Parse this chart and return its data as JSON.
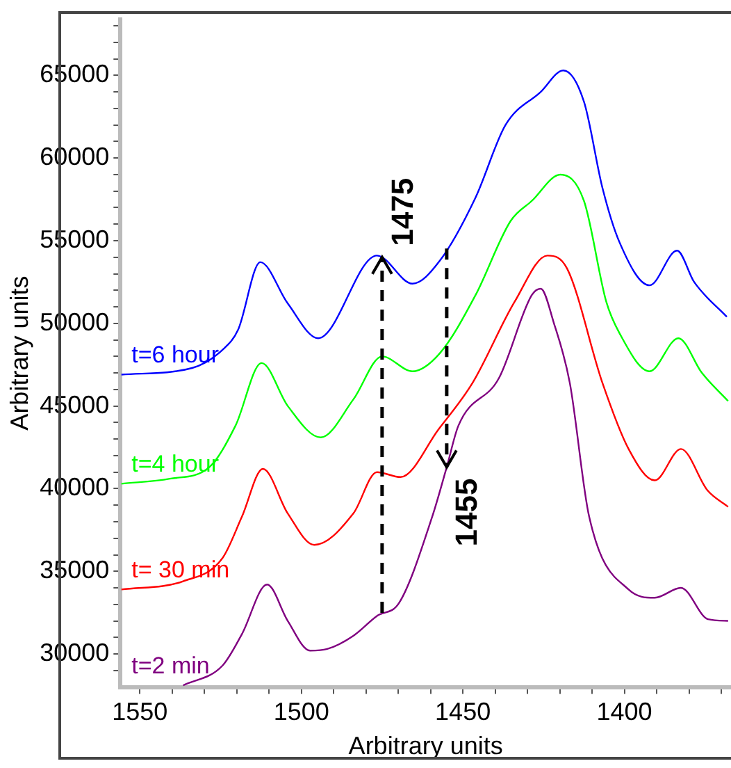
{
  "chart_data": {
    "type": "line",
    "xlabel": "Arbitrary units",
    "ylabel": "Arbitrary units",
    "xlim": [
      1556,
      1367
    ],
    "ylim": [
      28000,
      68400
    ],
    "xticks": [
      1550,
      {
        "value": 1540,
        "label": null
      },
      {
        "value": 1530,
        "label": null
      },
      {
        "value": 1520,
        "label": null
      },
      {
        "value": 1510,
        "label": null
      },
      1500,
      {
        "value": 1490,
        "label": null
      },
      {
        "value": 1480,
        "label": null
      },
      {
        "value": 1470,
        "label": null
      },
      {
        "value": 1460,
        "label": null
      },
      1450,
      {
        "value": 1440,
        "label": null
      },
      {
        "value": 1430,
        "label": null
      },
      {
        "value": 1420,
        "label": null
      },
      {
        "value": 1410,
        "label": null
      },
      1400,
      {
        "value": 1390,
        "label": null
      },
      {
        "value": 1380,
        "label": null
      },
      {
        "value": 1370,
        "label": null
      }
    ],
    "yticks": [
      {
        "value": 29000,
        "label": null
      },
      30000,
      {
        "value": 31000,
        "label": null
      },
      {
        "value": 32000,
        "label": null
      },
      {
        "value": 33000,
        "label": null
      },
      {
        "value": 34000,
        "label": null
      },
      35000,
      {
        "value": 36000,
        "label": null
      },
      {
        "value": 37000,
        "label": null
      },
      {
        "value": 38000,
        "label": null
      },
      {
        "value": 39000,
        "label": null
      },
      40000,
      {
        "value": 41000,
        "label": null
      },
      {
        "value": 42000,
        "label": null
      },
      {
        "value": 43000,
        "label": null
      },
      {
        "value": 44000,
        "label": null
      },
      45000,
      {
        "value": 46000,
        "label": null
      },
      {
        "value": 47000,
        "label": null
      },
      {
        "value": 48000,
        "label": null
      },
      {
        "value": 49000,
        "label": null
      },
      50000,
      {
        "value": 51000,
        "label": null
      },
      {
        "value": 52000,
        "label": null
      },
      {
        "value": 53000,
        "label": null
      },
      {
        "value": 54000,
        "label": null
      },
      55000,
      {
        "value": 56000,
        "label": null
      },
      {
        "value": 57000,
        "label": null
      },
      {
        "value": 58000,
        "label": null
      },
      {
        "value": 59000,
        "label": null
      },
      60000,
      {
        "value": 61000,
        "label": null
      },
      {
        "value": 62000,
        "label": null
      },
      {
        "value": 63000,
        "label": null
      },
      {
        "value": 64000,
        "label": null
      },
      65000,
      {
        "value": 66000,
        "label": null
      },
      {
        "value": 67000,
        "label": null
      },
      {
        "value": 68000,
        "label": null
      }
    ],
    "grid": false,
    "legend": false,
    "marker": "none",
    "line_style": "solid",
    "series": [
      {
        "name": "t=6 hour",
        "color": "#0000ff",
        "x": [
          1555.7,
          1533.8,
          1524.4,
          1519.6,
          1512.7,
          1504.2,
          1494.8,
          1476.6,
          1465.6,
          1457.1,
          1446.1,
          1436.8,
          1425.9,
          1418.9,
          1412.5,
          1406.8,
          1401.5,
          1392.2,
          1383.7,
          1378.4,
          1368.3
        ],
        "values": [
          46900,
          47300,
          48400,
          49600,
          53700,
          51200,
          49100,
          54100,
          52400,
          53800,
          57600,
          62000,
          64000,
          65300,
          63400,
          58200,
          54900,
          52300,
          54400,
          52500,
          50400
        ]
      },
      {
        "name": "t=4 hour",
        "color": "#00ff00",
        "x": [
          1555.7,
          1540.7,
          1528.5,
          1520.4,
          1512.3,
          1504.2,
          1494.0,
          1483.9,
          1475.0,
          1465.6,
          1457.1,
          1446.1,
          1435.2,
          1428.7,
          1419.8,
          1412.5,
          1405.6,
          1401.5,
          1392.2,
          1383.3,
          1376.0,
          1367.9
        ],
        "values": [
          40300,
          40600,
          41300,
          43800,
          47600,
          45000,
          43100,
          45400,
          48000,
          47100,
          48200,
          51700,
          56200,
          57400,
          59000,
          57400,
          51300,
          49400,
          47100,
          49100,
          47000,
          45300
        ]
      },
      {
        "name": "t= 30 min",
        "color": "#ff0000",
        "x": [
          1555.7,
          1536.6,
          1524.4,
          1518.4,
          1511.9,
          1504.2,
          1496.0,
          1483.9,
          1476.6,
          1469.3,
          1457.5,
          1447.0,
          1434.0,
          1423.8,
          1417.7,
          1406.8,
          1398.7,
          1390.6,
          1382.5,
          1374.3,
          1367.9
        ],
        "values": [
          33900,
          34400,
          35800,
          38300,
          41200,
          38500,
          36600,
          38500,
          41000,
          40700,
          43600,
          46400,
          51300,
          54100,
          53300,
          46400,
          42400,
          40500,
          42400,
          39900,
          38900
        ]
      },
      {
        "name": "t=2 min",
        "color": "#800080",
        "x": [
          1536.6,
          1524.4,
          1518.4,
          1510.6,
          1504.2,
          1497.3,
          1492.0,
          1483.9,
          1476.6,
          1469.7,
          1459.5,
          1455.0,
          1451.4,
          1438.8,
          1428.7,
          1425.9,
          1421.8,
          1416.9,
          1410.9,
          1398.7,
          1390.6,
          1382.5,
          1374.1,
          1367.9
        ],
        "values": [
          28100,
          29300,
          31200,
          34200,
          32000,
          30200,
          30300,
          31100,
          32300,
          33100,
          38300,
          41300,
          43800,
          46700,
          51700,
          52100,
          50000,
          46400,
          38300,
          33900,
          33400,
          34000,
          32100,
          32000
        ]
      }
    ],
    "annotations": [
      {
        "text": "1475",
        "x": 1475,
        "y": 54000
      },
      {
        "text": "1455",
        "x": 1455,
        "y": 41300
      }
    ]
  }
}
